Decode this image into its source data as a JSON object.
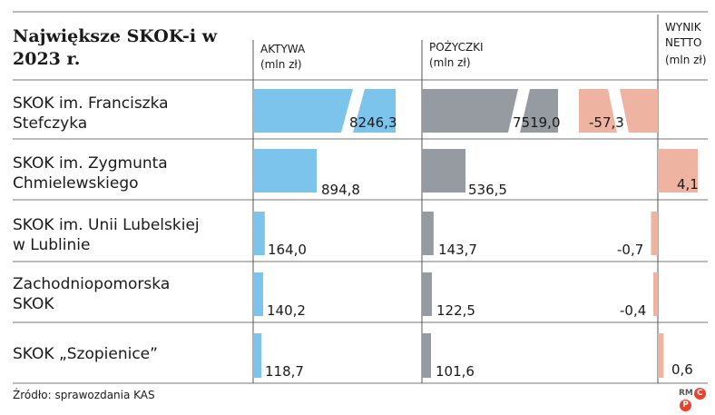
{
  "header": {
    "title": "Największe SKOK-i w 2023 r.",
    "col_aktywa": "AKTYWA",
    "col_aktywa_unit": "(mln zł)",
    "col_pozyczki": "POŻYCZKI",
    "col_pozyczki_unit": "(mln zł)",
    "col_wynik_1": "WYNIK",
    "col_wynik_2": "NETTO",
    "col_wynik_unit": "(mln zł)"
  },
  "rows": [
    {
      "line1": "SKOK im. Franciszka",
      "line2": "Stefczyka"
    },
    {
      "line1": "SKOK im. Zygmunta",
      "line2": "Chmielewskiego"
    },
    {
      "line1": "SKOK im. Unii Lubelskiej",
      "line2": "w Lublinie"
    },
    {
      "line1": "Zachodniopomorska",
      "line2": "SKOK"
    },
    {
      "line1": "SKOK „Szopienice”",
      "line2": ""
    }
  ],
  "labels": {
    "aktywa": [
      "8246,3",
      "894,8",
      "164,0",
      "140,2",
      "118,7"
    ],
    "pozyczki": [
      "7519,0",
      "536,5",
      "143,7",
      "122,5",
      "101,6"
    ],
    "wynik": [
      "-57,3",
      "4,1",
      "-0,7",
      "-0,4",
      "0,6"
    ]
  },
  "chart_data": {
    "type": "bar",
    "title": "Największe SKOK-i w 2023 r.",
    "categories": [
      "SKOK im. Franciszka Stefczyka",
      "SKOK im. Zygmunta Chmielewskiego",
      "SKOK im. Unii Lubelskiej w Lublinie",
      "Zachodniopomorska SKOK",
      "SKOK „Szopienice”"
    ],
    "series": [
      {
        "name": "AKTYWA",
        "values": [
          8246.3,
          894.8,
          164.0,
          140.2,
          118.7
        ]
      },
      {
        "name": "POŻYCZKI",
        "values": [
          7519.0,
          536.5,
          143.7,
          122.5,
          101.6
        ]
      },
      {
        "name": "WYNIK NETTO",
        "values": [
          -57.3,
          4.1,
          -0.7,
          -0.4,
          0.6
        ]
      }
    ],
    "unit": "mln zł",
    "axis_break_on_first_row": true,
    "colors": {
      "aktywa": "#7cc4ec",
      "pozyczki": "#959ba1",
      "wynik": "#efb3a1"
    }
  },
  "footer": {
    "source": "Źródło: sprawozdania KAS",
    "logo": "RM"
  }
}
